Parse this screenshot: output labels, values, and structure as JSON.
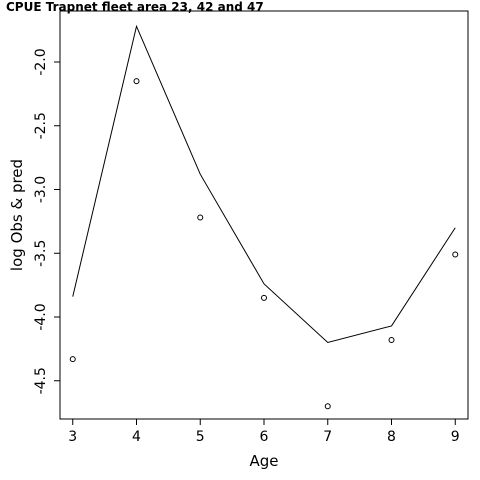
{
  "chart_data": {
    "type": "line",
    "title": "CPUE Trapnet fleet area 23, 42 and 47",
    "xlabel": "Age",
    "ylabel": "log Obs & pred",
    "xlim": [
      2.8,
      9.2
    ],
    "ylim": [
      -4.8,
      -1.6
    ],
    "x_ticks": [
      3,
      4,
      5,
      6,
      7,
      8,
      9
    ],
    "x_tick_labels": [
      "3",
      "4",
      "5",
      "6",
      "7",
      "8",
      "9"
    ],
    "y_ticks": [
      -4.5,
      -4.0,
      -3.5,
      -3.0,
      -2.5,
      -2.0
    ],
    "y_tick_labels": [
      "-4.5",
      "-4.0",
      "-3.5",
      "-3.0",
      "-2.5",
      "-2.0"
    ],
    "grid": false,
    "series": [
      {
        "role": "pred",
        "style": "line",
        "x": [
          3,
          4,
          5,
          6,
          7,
          8,
          9
        ],
        "y": [
          -3.84,
          -1.72,
          -2.88,
          -3.74,
          -4.2,
          -4.07,
          -3.3
        ]
      },
      {
        "role": "obs",
        "style": "points",
        "x": [
          3,
          4,
          5,
          6,
          7,
          8,
          9
        ],
        "y": [
          -4.33,
          -2.15,
          -3.22,
          -3.85,
          -4.7,
          -4.18,
          -3.51
        ]
      }
    ],
    "colors": {
      "line": "#000000",
      "points": "#000000",
      "axis": "#000000"
    }
  }
}
